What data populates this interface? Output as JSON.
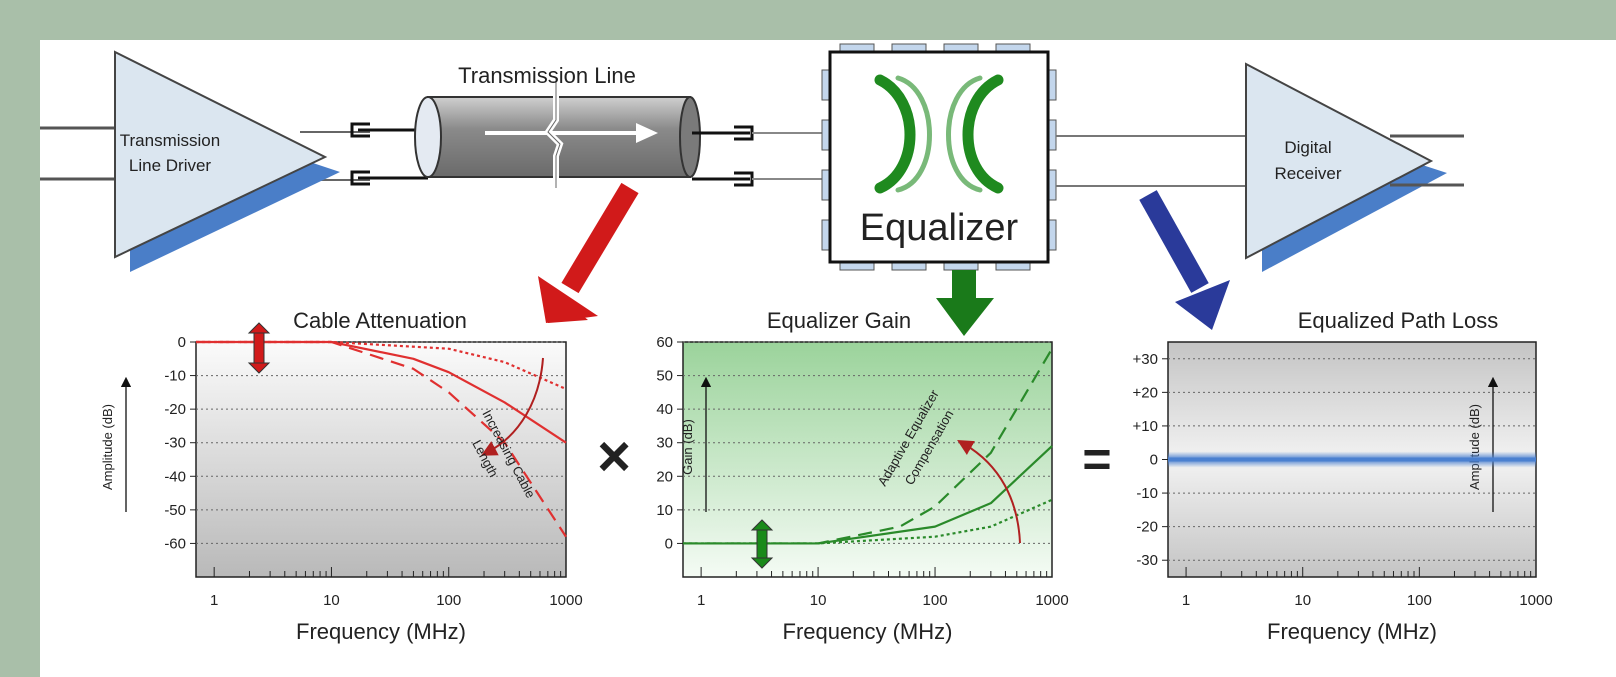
{
  "blocks": {
    "driver": [
      "Transmission",
      "Line Driver"
    ],
    "transmission_line": "Transmission Line",
    "equalizer": "Equalizer",
    "receiver": [
      "Digital",
      "Receiver"
    ]
  },
  "operators": {
    "multiply": "×",
    "equals": "="
  },
  "chart_data": [
    {
      "type": "line",
      "title": "Cable Attenuation",
      "xlabel": "Frequency (MHz)",
      "ylabel": "Amplitude (dB)",
      "x_scale": "log",
      "xlim": [
        0.7,
        1000
      ],
      "ylim": [
        -70,
        0
      ],
      "x_ticks": [
        "1",
        "10",
        "100",
        "1000"
      ],
      "y_ticks": [
        "0",
        "-10",
        "-20",
        "-30",
        "-40",
        "-50",
        "-60"
      ],
      "annotation": [
        "Increasing Cable",
        "Length"
      ],
      "series": [
        {
          "style": "dotted",
          "color": "#e03030",
          "x": [
            10,
            100,
            300,
            1000
          ],
          "y": [
            0,
            -2,
            -6,
            -14
          ]
        },
        {
          "style": "solid",
          "color": "#e03030",
          "x": [
            10,
            50,
            100,
            300,
            1000
          ],
          "y": [
            0,
            -5,
            -9,
            -18,
            -30
          ]
        },
        {
          "style": "dashed",
          "color": "#e03030",
          "x": [
            10,
            50,
            100,
            300,
            1000
          ],
          "y": [
            0,
            -8,
            -15,
            -30,
            -58
          ]
        }
      ]
    },
    {
      "type": "line",
      "title": "Equalizer Gain",
      "xlabel": "Frequency (MHz)",
      "ylabel": "Gain (dB)",
      "x_scale": "log",
      "xlim": [
        0.7,
        1000
      ],
      "ylim": [
        -10,
        60
      ],
      "x_ticks": [
        "1",
        "10",
        "100",
        "1000"
      ],
      "y_ticks": [
        "60",
        "50",
        "40",
        "30",
        "20",
        "10",
        "0"
      ],
      "annotation": [
        "Adaptive Equalizer",
        "Compensation"
      ],
      "series": [
        {
          "style": "dotted",
          "color": "#2a8a2a",
          "x": [
            10,
            100,
            300,
            1000
          ],
          "y": [
            0,
            2,
            5,
            13
          ]
        },
        {
          "style": "solid",
          "color": "#2a8a2a",
          "x": [
            10,
            100,
            300,
            1000
          ],
          "y": [
            0,
            5,
            12,
            29
          ]
        },
        {
          "style": "dashed",
          "color": "#2a8a2a",
          "x": [
            10,
            50,
            100,
            300,
            1000
          ],
          "y": [
            0,
            5,
            11,
            27,
            58
          ]
        }
      ]
    },
    {
      "type": "line",
      "title": "Equalized Path Loss",
      "xlabel": "Frequency (MHz)",
      "ylabel": "Amplitude (dB)",
      "x_scale": "log",
      "xlim": [
        0.7,
        1000
      ],
      "ylim": [
        -35,
        35
      ],
      "x_ticks": [
        "1",
        "10",
        "100",
        "1000"
      ],
      "y_ticks": [
        "+30",
        "+20",
        "+10",
        "0",
        "-10",
        "-20",
        "-30"
      ],
      "series": [
        {
          "style": "solid",
          "color": "#4a80d0",
          "x": [
            0.7,
            1000
          ],
          "y": [
            0,
            0
          ]
        }
      ]
    }
  ]
}
